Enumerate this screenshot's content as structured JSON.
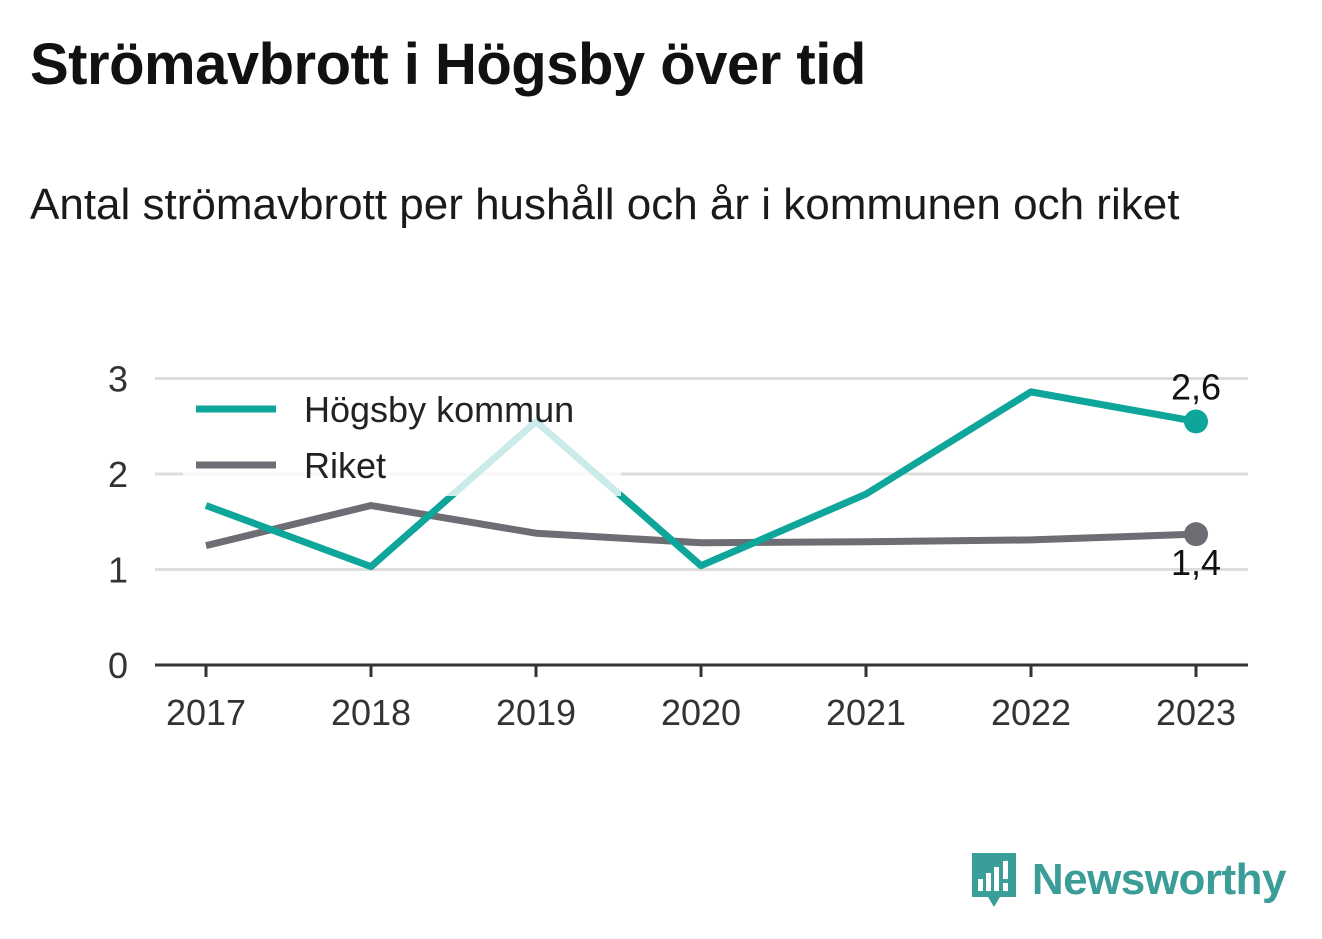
{
  "title": "Strömavbrott i Högsby över tid",
  "subtitle": "Antal strömavbrott per hushåll och år i kommunen och riket",
  "brand": {
    "name": "Newsworthy",
    "logo_icon": "bar-chart-speech-bubble-icon"
  },
  "colors": {
    "hogsby": "#0ea59a",
    "riket": "#6d6d74",
    "grid": "#dddddd",
    "axis": "#333333",
    "brand": "#3b9d98"
  },
  "chart_data": {
    "type": "line",
    "title": "Strömavbrott i Högsby över tid",
    "subtitle": "Antal strömavbrott per hushåll och år i kommunen och riket",
    "x": [
      "2017",
      "2018",
      "2019",
      "2020",
      "2021",
      "2022",
      "2023"
    ],
    "y_ticks": [
      "0",
      "1",
      "2",
      "3"
    ],
    "ylim": [
      0,
      3
    ],
    "grid": true,
    "legend_position": "top-left",
    "series": [
      {
        "name": "Högsby kommun",
        "color": "#0ea59a",
        "values": [
          1.67,
          1.03,
          2.55,
          1.04,
          1.79,
          2.86,
          2.55
        ],
        "end_label": "2,6"
      },
      {
        "name": "Riket",
        "color": "#6d6d74",
        "values": [
          1.25,
          1.67,
          1.38,
          1.28,
          1.29,
          1.31,
          1.37
        ],
        "end_label": "1,4"
      }
    ]
  }
}
